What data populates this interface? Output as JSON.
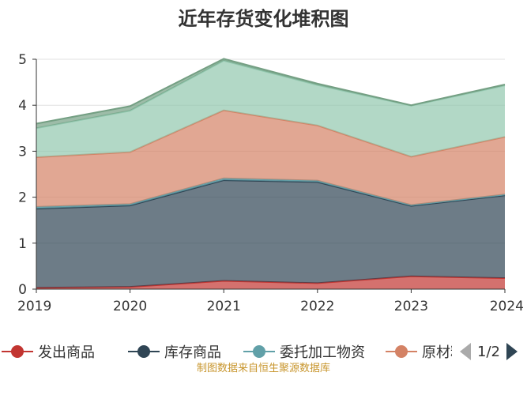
{
  "chart_data": {
    "type": "area",
    "stacked": true,
    "title": "近年存货变化堆积图",
    "x": [
      "2019",
      "2020",
      "2021",
      "2022",
      "2023",
      "2024"
    ],
    "ylim": [
      0,
      5
    ],
    "yticks": [
      "0",
      "1",
      "2",
      "3",
      "4",
      "5"
    ],
    "grid": true,
    "legend_position": "bottom",
    "series": [
      {
        "name": "发出商品",
        "color": "#c23531",
        "values": [
          0.03,
          0.05,
          0.18,
          0.13,
          0.28,
          0.24
        ]
      },
      {
        "name": "库存商品",
        "color": "#2f4554",
        "values": [
          1.72,
          1.77,
          2.19,
          2.2,
          1.53,
          1.8
        ]
      },
      {
        "name": "委托加工物资",
        "color": "#61a0a8",
        "values": [
          0.04,
          0.03,
          0.04,
          0.03,
          0.02,
          0.02
        ]
      },
      {
        "name": "原材料",
        "color": "#d48265",
        "values": [
          1.08,
          1.13,
          1.48,
          1.2,
          1.05,
          1.25
        ]
      },
      {
        "name": "",
        "color": "#91c7ae",
        "values": [
          0.63,
          0.9,
          1.08,
          0.88,
          1.11,
          1.12
        ]
      },
      {
        "name": "",
        "color": "#749f83",
        "values": [
          0.1,
          0.1,
          0.04,
          0.03,
          0.01,
          0.02
        ]
      }
    ]
  },
  "legend": {
    "items": [
      {
        "label": "发出商品",
        "color": "#c23531"
      },
      {
        "label": "库存商品",
        "color": "#2f4554"
      },
      {
        "label": "委托加工物资",
        "color": "#61a0a8"
      },
      {
        "label": "原材料",
        "color": "#d48265"
      }
    ],
    "page_text": "1/2"
  },
  "source_text": "制图数据来自恒生聚源数据库"
}
